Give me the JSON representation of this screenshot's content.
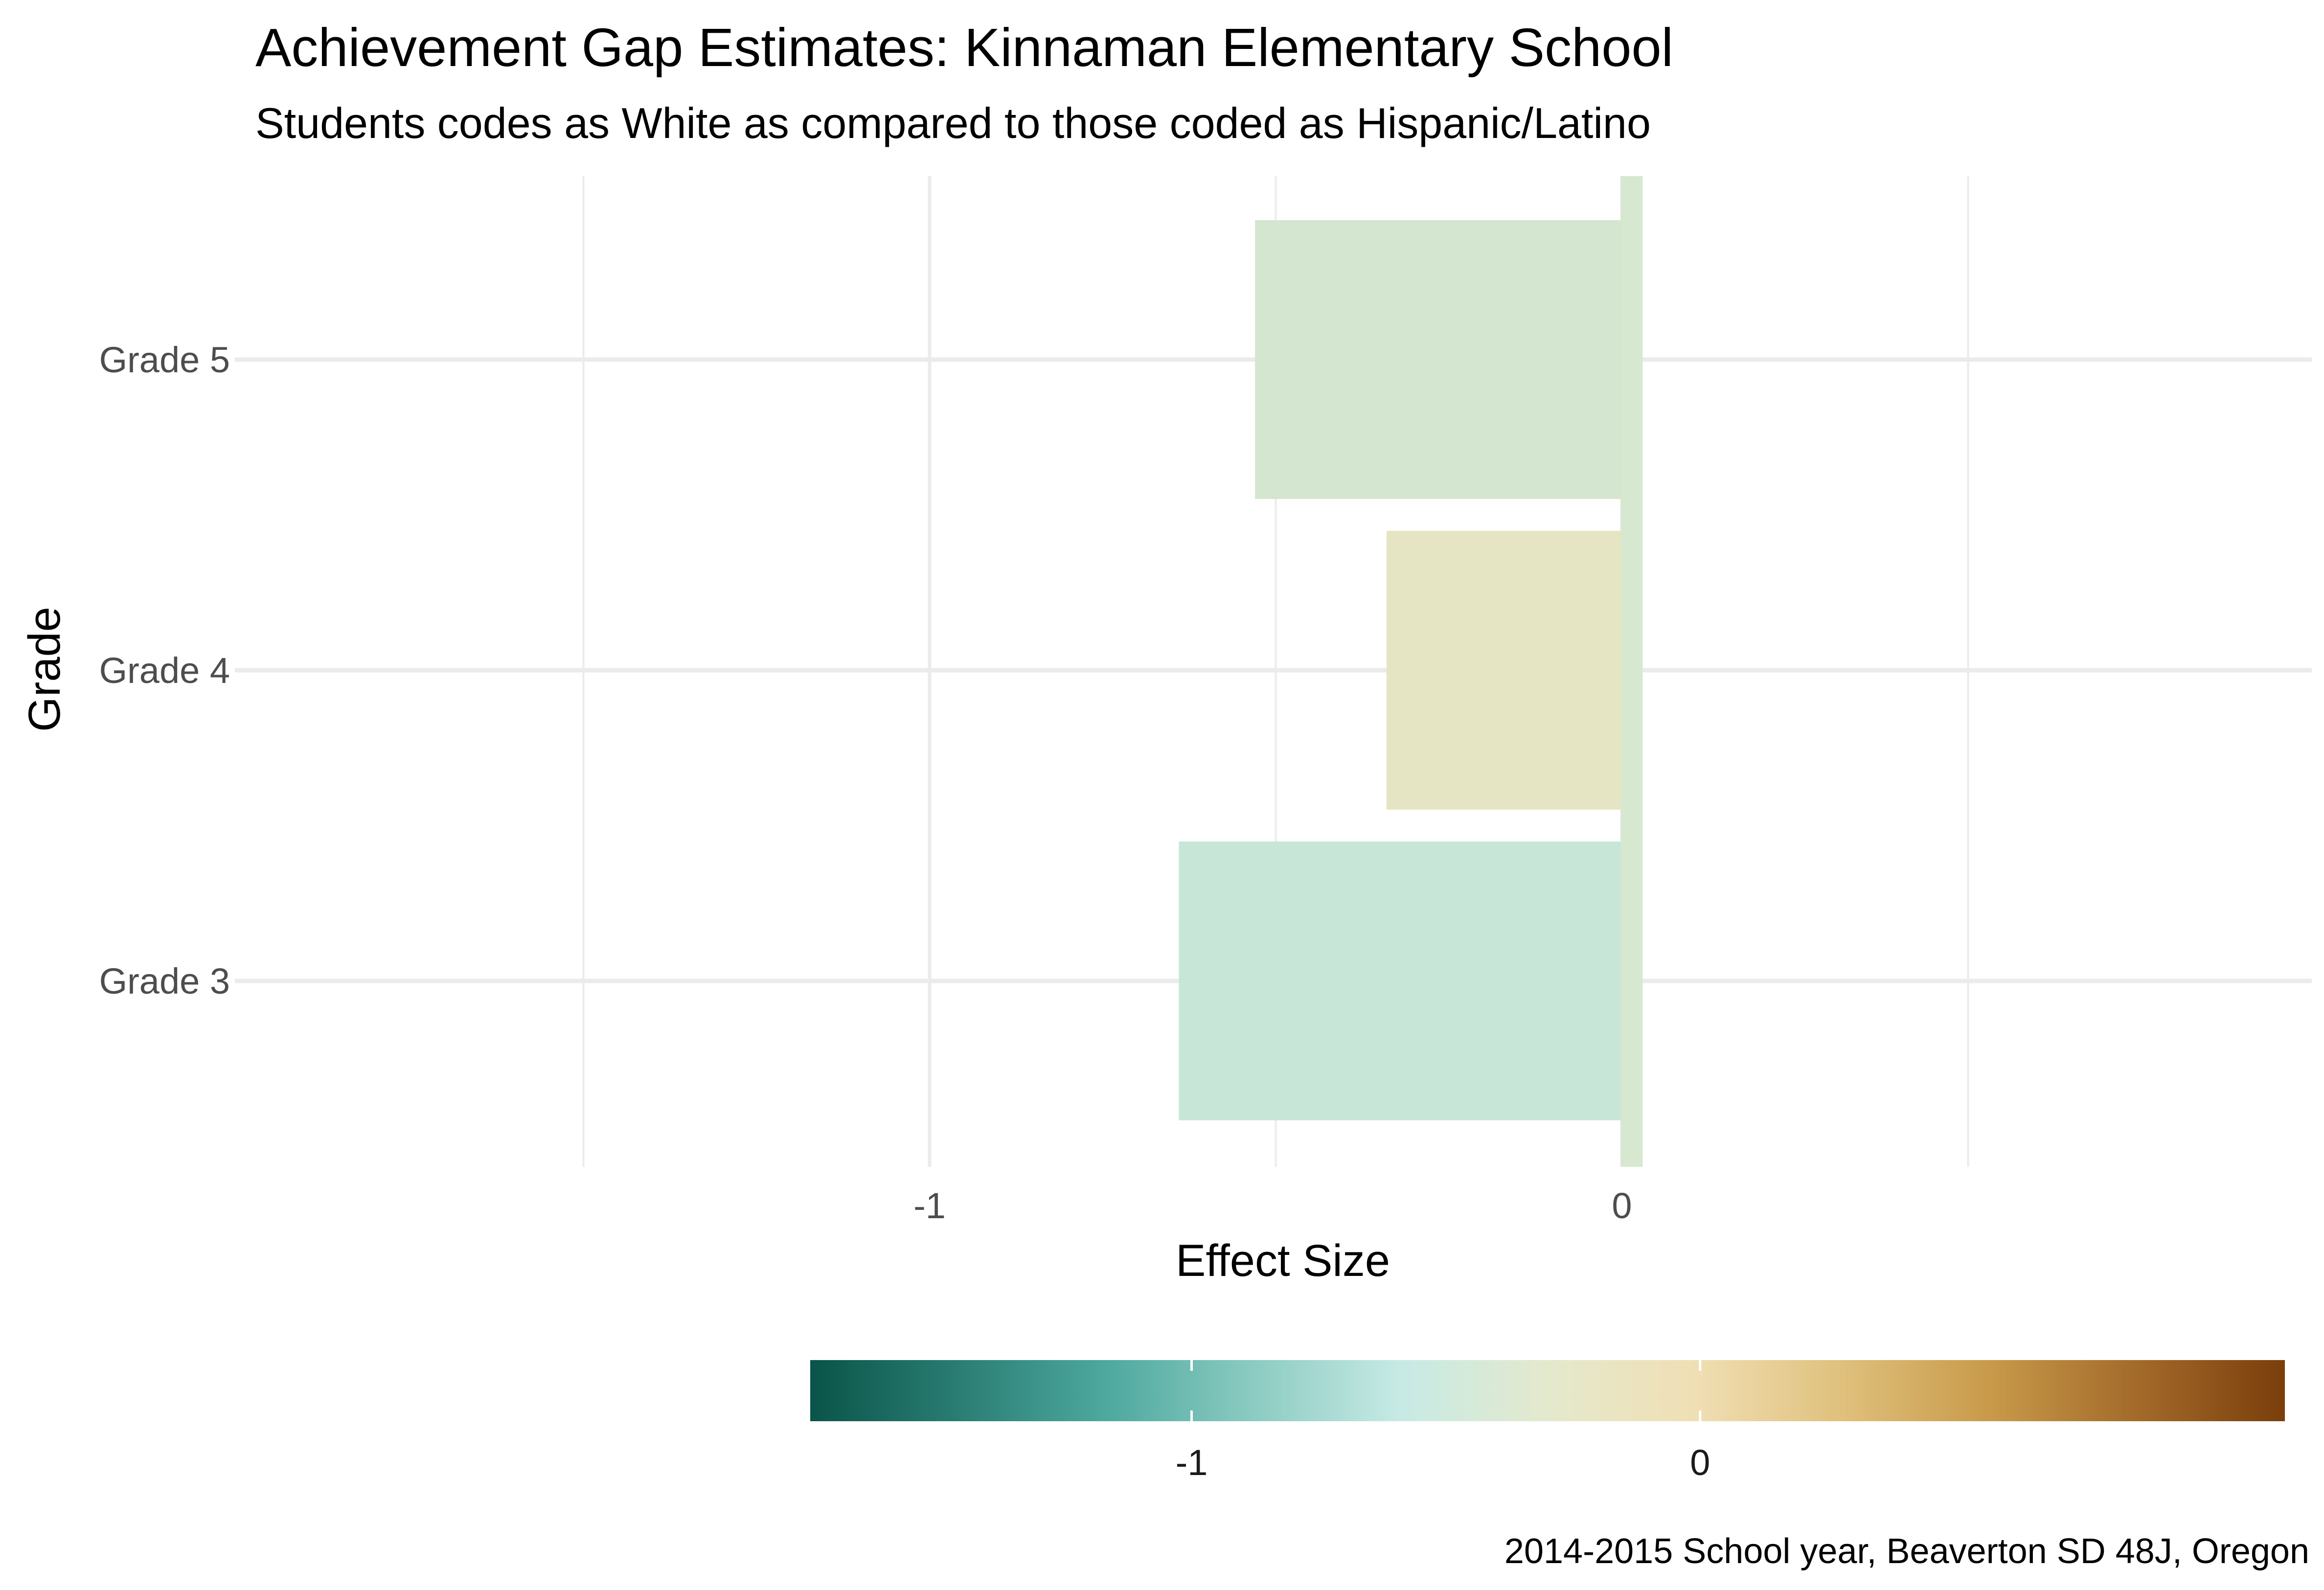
{
  "chart_data": {
    "type": "bar",
    "orientation": "horizontal",
    "title": "Achievement Gap Estimates: Kinnaman Elementary School",
    "subtitle": "Students codes as White as compared to those coded as Hispanic/Latino",
    "xlabel": "Effect Size",
    "ylabel": "Grade",
    "caption": "2014-2015 School year, Beaverton SD 48J, Oregon",
    "categories": [
      "Grade 3",
      "Grade 4",
      "Grade 5"
    ],
    "values": [
      -0.64,
      -0.34,
      -0.53
    ],
    "zero_bar_value": 0.03,
    "xlim": [
      -1.5,
      1.0
    ],
    "xticks": [
      -1,
      0
    ],
    "xtick_labels": [
      "-1",
      "0"
    ],
    "grid": true,
    "legend": {
      "placement": "bottom",
      "type": "colorbar",
      "range": [
        -1.75,
        1.15
      ],
      "ticks": [
        -1,
        0
      ],
      "tick_labels": [
        "-1",
        "0"
      ],
      "colors": [
        "#0a5449",
        "#2a7d73",
        "#4da89e",
        "#8bcbc1",
        "#c7eae5",
        "#e4e9cd",
        "#f0dfb4",
        "#dfc07c",
        "#c89a4a",
        "#a36a2a",
        "#7a3e0b"
      ]
    },
    "bar_colors": [
      "#c8e6d8",
      "#e5e5c3",
      "#d4e6d0",
      "#d6e8d0"
    ]
  }
}
